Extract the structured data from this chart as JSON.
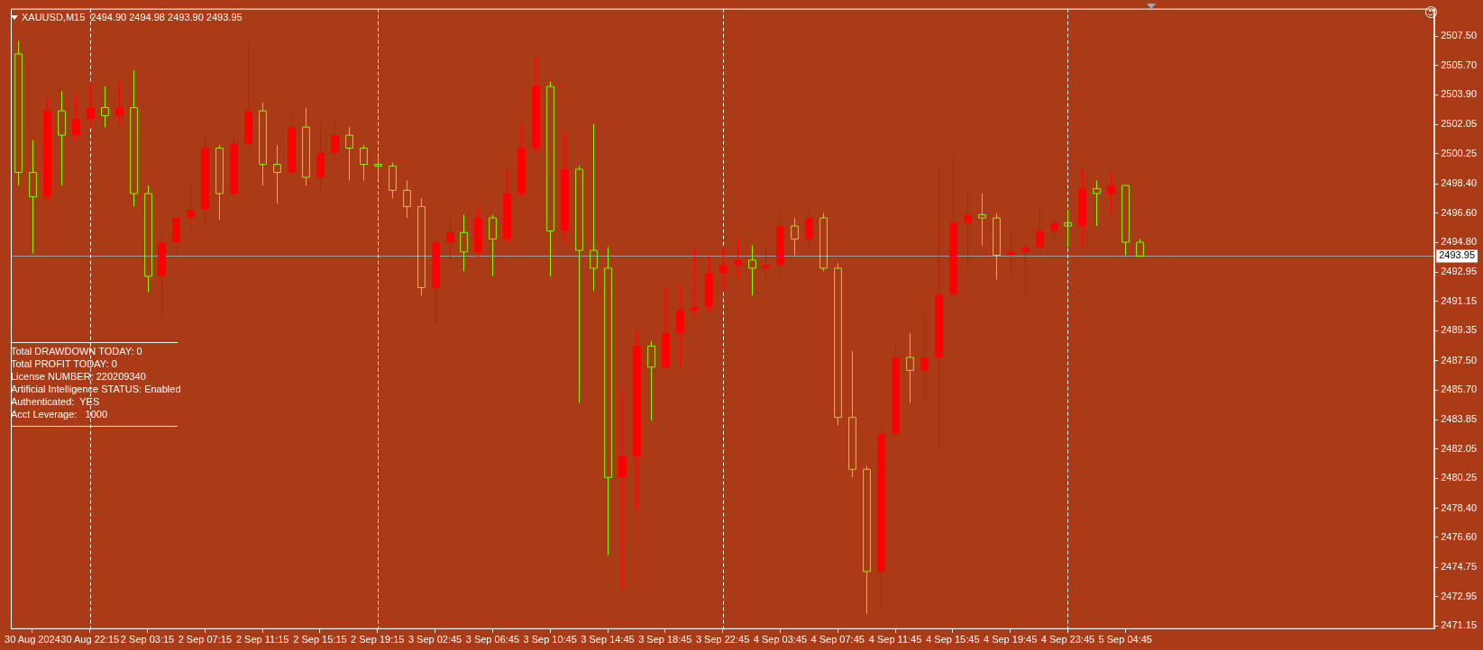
{
  "chart_data": {
    "type": "candlestick",
    "title": "XAUUSD,M15  2494.90 2494.98 2493.90 2493.95",
    "annotations": [
      "Total DRAWDOWN TODAY: 0",
      "Total PROFIT TODAY: 0",
      "License NUMBER: 220209340",
      "Artificial Intelligence STATUS: Enabled",
      "Authenticated:  YES",
      "Acct Leverage:   1000"
    ],
    "categories": [
      null,
      "30 Aug 2024",
      null,
      null,
      null,
      "30 Aug 22:15",
      null,
      null,
      null,
      "2 Sep 03:15",
      null,
      null,
      null,
      "2 Sep 07:15",
      null,
      null,
      null,
      "2 Sep 11:15",
      null,
      null,
      null,
      "2 Sep 15:15",
      null,
      null,
      null,
      "2 Sep 19:15",
      null,
      null,
      null,
      "3 Sep 02:45",
      null,
      null,
      null,
      "3 Sep 06:45",
      null,
      null,
      null,
      "3 Sep 10:45",
      null,
      null,
      null,
      "3 Sep 14:45",
      null,
      null,
      null,
      "3 Sep 18:45",
      null,
      null,
      null,
      "3 Sep 22:45",
      null,
      null,
      null,
      "4 Sep 03:45",
      null,
      null,
      null,
      "4 Sep 07:45",
      null,
      null,
      null,
      "4 Sep 11:45",
      null,
      null,
      null,
      "4 Sep 15:45",
      null,
      null,
      null,
      "4 Sep 19:45",
      null,
      null,
      null,
      "4 Sep 23:45",
      null,
      null,
      null,
      "5 Sep 04:45",
      null,
      null,
      null,
      null,
      null,
      null,
      null,
      null,
      null,
      null,
      null,
      null,
      null,
      null,
      null,
      null,
      null,
      null,
      null,
      null,
      null
    ],
    "ohlc": [
      [
        2506.4,
        2507.2,
        2498.3,
        2499.1
      ],
      [
        2499.1,
        2501.1,
        2494.1,
        2497.6
      ],
      [
        2497.6,
        2503.6,
        2497.3,
        2502.9
      ],
      [
        2502.9,
        2504.1,
        2498.3,
        2501.4
      ],
      [
        2501.4,
        2503.9,
        2501.1,
        2502.4
      ],
      [
        2502.4,
        2504.7,
        2501.9,
        2503.1
      ],
      [
        2503.1,
        2504.4,
        2501.9,
        2502.6
      ],
      [
        2502.6,
        2504.7,
        2502.1,
        2503.1
      ],
      [
        2503.1,
        2505.4,
        2497.0,
        2497.8
      ],
      [
        2497.8,
        2498.3,
        2491.7,
        2492.7
      ],
      [
        2492.7,
        2495.3,
        2490.2,
        2494.8
      ],
      [
        2494.8,
        2496.5,
        2494.0,
        2496.3
      ],
      [
        2496.3,
        2498.6,
        2495.6,
        2496.8
      ],
      [
        2496.8,
        2501.4,
        2495.8,
        2500.6
      ],
      [
        2500.6,
        2500.8,
        2496.2,
        2497.8
      ],
      [
        2497.8,
        2501.6,
        2497.5,
        2500.9
      ],
      [
        2500.9,
        2507.2,
        2500.6,
        2502.9
      ],
      [
        2502.9,
        2503.4,
        2498.3,
        2499.6
      ],
      [
        2499.6,
        2500.8,
        2497.2,
        2499.1
      ],
      [
        2499.1,
        2502.9,
        2498.8,
        2501.9
      ],
      [
        2501.9,
        2503.1,
        2498.3,
        2498.8
      ],
      [
        2498.8,
        2502.1,
        2497.8,
        2500.3
      ],
      [
        2500.3,
        2502.5,
        2499.8,
        2501.4
      ],
      [
        2501.4,
        2501.9,
        2498.6,
        2500.6
      ],
      [
        2500.6,
        2500.8,
        2498.6,
        2499.6
      ],
      [
        2499.6,
        2500.1,
        2498.7,
        2499.5
      ],
      [
        2499.5,
        2499.7,
        2497.5,
        2498.0
      ],
      [
        2498.0,
        2498.6,
        2496.3,
        2497.0
      ],
      [
        2497.0,
        2497.5,
        2491.5,
        2492.0
      ],
      [
        2492.0,
        2495.0,
        2489.7,
        2494.8
      ],
      [
        2494.8,
        2496.4,
        2493.7,
        2495.4
      ],
      [
        2495.4,
        2496.5,
        2493.0,
        2494.2
      ],
      [
        2494.2,
        2497.0,
        2493.9,
        2496.3
      ],
      [
        2496.3,
        2496.5,
        2492.7,
        2495.0
      ],
      [
        2495.0,
        2499.3,
        2494.8,
        2497.8
      ],
      [
        2497.8,
        2502.1,
        2497.5,
        2500.6
      ],
      [
        2500.6,
        2506.2,
        2500.3,
        2504.4
      ],
      [
        2504.4,
        2504.7,
        2492.7,
        2495.5
      ],
      [
        2495.5,
        2501.6,
        2494.8,
        2499.3
      ],
      [
        2499.3,
        2499.5,
        2484.9,
        2494.3
      ],
      [
        2494.3,
        2502.1,
        2491.8,
        2493.2
      ],
      [
        2493.2,
        2494.5,
        2475.5,
        2480.3
      ],
      [
        2480.3,
        2485.6,
        2473.4,
        2481.6
      ],
      [
        2481.6,
        2489.4,
        2478.3,
        2488.4
      ],
      [
        2488.4,
        2488.7,
        2483.8,
        2487.1
      ],
      [
        2487.1,
        2492.0,
        2487.0,
        2489.2
      ],
      [
        2489.2,
        2492.2,
        2487.1,
        2490.6
      ],
      [
        2490.6,
        2494.4,
        2490.2,
        2490.8
      ],
      [
        2490.8,
        2494.0,
        2490.5,
        2492.9
      ],
      [
        2492.9,
        2494.5,
        2491.8,
        2493.4
      ],
      [
        2493.4,
        2495.0,
        2492.5,
        2493.7
      ],
      [
        2493.7,
        2494.6,
        2491.5,
        2493.2
      ],
      [
        2493.2,
        2494.5,
        2492.5,
        2493.4
      ],
      [
        2493.4,
        2496.8,
        2492.7,
        2495.8
      ],
      [
        2495.8,
        2496.3,
        2494.0,
        2495.0
      ],
      [
        2495.0,
        2496.8,
        2494.4,
        2496.3
      ],
      [
        2496.3,
        2496.6,
        2493.0,
        2493.2
      ],
      [
        2493.2,
        2493.5,
        2483.5,
        2484.0
      ],
      [
        2484.0,
        2488.1,
        2480.3,
        2480.8
      ],
      [
        2480.8,
        2481.0,
        2471.9,
        2474.5
      ],
      [
        2474.5,
        2483.4,
        2472.2,
        2483.0
      ],
      [
        2483.0,
        2488.4,
        2482.8,
        2487.7
      ],
      [
        2487.7,
        2489.2,
        2484.9,
        2486.9
      ],
      [
        2486.9,
        2490.6,
        2485.1,
        2487.7
      ],
      [
        2487.7,
        2499.3,
        2482.1,
        2491.6
      ],
      [
        2491.6,
        2500.2,
        2491.4,
        2496.0
      ],
      [
        2496.0,
        2498.1,
        2493.2,
        2496.5
      ],
      [
        2496.5,
        2497.8,
        2494.6,
        2496.3
      ],
      [
        2496.3,
        2496.6,
        2492.5,
        2494.0
      ],
      [
        2494.0,
        2495.5,
        2492.7,
        2494.2
      ],
      [
        2494.2,
        2494.6,
        2491.5,
        2494.5
      ],
      [
        2494.5,
        2497.0,
        2494.2,
        2495.5
      ],
      [
        2495.5,
        2496.3,
        2495.0,
        2496.0
      ],
      [
        2496.0,
        2496.8,
        2494.5,
        2495.8
      ],
      [
        2495.8,
        2499.3,
        2494.5,
        2498.1
      ],
      [
        2498.1,
        2498.6,
        2495.8,
        2497.8
      ],
      [
        2497.8,
        2499.1,
        2496.5,
        2498.3
      ],
      [
        2498.3,
        2498.3,
        2494.0,
        2494.8
      ],
      [
        2494.8,
        2495.0,
        2493.9,
        2493.95
      ],
      null,
      null,
      null,
      null,
      null,
      null,
      null,
      null,
      null,
      null,
      null,
      null,
      null,
      null,
      null,
      null,
      null,
      null,
      null,
      null
    ],
    "colors": [
      "#7cfc00",
      "#7cfc00",
      "#ff0000",
      "#7cfc00",
      "#ff0000",
      "#ff0000",
      "#7cfc00",
      "#ff0000",
      "#7cfc00",
      "#7cfc00",
      "#ff0000",
      "#ff0000",
      "#ff0000",
      "#ff0000",
      "#7cfc00",
      "#ff0000",
      "#ff0000",
      "#7cfc00",
      "#7cfc00",
      "#ff0000",
      "#7cfc00",
      "#ff0000",
      "#ff0000",
      "#7cfc00",
      "#7cfc00",
      "#7cfc00",
      "#7cfc00",
      "#7cfc00",
      "#7cfc00",
      "#ff0000",
      "#ff0000",
      "#7cfc00",
      "#ff0000",
      "#7cfc00",
      "#ff0000",
      "#ff0000",
      "#ff0000",
      "#7cfc00",
      "#ff0000",
      "#7cfc00",
      "#7cfc00",
      "#7cfc00",
      "#ff0000",
      "#ff0000",
      "#7cfc00",
      "#ff0000",
      "#ff0000",
      "#ff0000",
      "#ff0000",
      "#ff0000",
      "#ff0000",
      "#7cfc00",
      "#ff0000",
      "#ff0000",
      "#7cfc00",
      "#ff0000",
      "#7cfc00",
      "#7cfc00",
      "#7cfc00",
      "#7cfc00",
      "#ff0000",
      "#ff0000",
      "#7cfc00",
      "#ff0000",
      "#ff0000",
      "#ff0000",
      "#ff0000",
      "#7cfc00",
      "#7cfc00",
      "#ff0000",
      "#ff0000",
      "#ff0000",
      "#ff0000",
      "#7cfc00",
      "#ff0000",
      "#7cfc00",
      "#ff0000",
      "#7cfc00",
      "#7cfc00",
      null,
      null,
      null,
      null,
      null,
      null,
      null,
      null,
      null,
      null,
      null,
      null,
      null,
      null,
      null,
      null,
      null,
      null,
      null,
      null
    ],
    "ylim": [
      2470.95,
      2509.2
    ],
    "yticks": [
      {
        "value": 2507.5,
        "label": "2507.50"
      },
      {
        "value": 2505.7,
        "label": "2505.70"
      },
      {
        "value": 2503.9,
        "label": "2503.90"
      },
      {
        "value": 2502.05,
        "label": "2502.05"
      },
      {
        "value": 2500.25,
        "label": "2500.25"
      },
      {
        "value": 2498.4,
        "label": "2498.40"
      },
      {
        "value": 2496.6,
        "label": "2496.60"
      },
      {
        "value": 2494.8,
        "label": "2494.80"
      },
      {
        "value": 2492.95,
        "label": "2492.95"
      },
      {
        "value": 2491.15,
        "label": "2491.15"
      },
      {
        "value": 2489.35,
        "label": "2489.35"
      },
      {
        "value": 2487.5,
        "label": "2487.50"
      },
      {
        "value": 2485.7,
        "label": "2485.70"
      },
      {
        "value": 2483.85,
        "label": "2483.85"
      },
      {
        "value": 2482.05,
        "label": "2482.05"
      },
      {
        "value": 2480.25,
        "label": "2480.25"
      },
      {
        "value": 2478.4,
        "label": "2478.40"
      },
      {
        "value": 2476.6,
        "label": "2476.60"
      },
      {
        "value": 2474.75,
        "label": "2474.75"
      },
      {
        "value": 2472.95,
        "label": "2472.95"
      },
      {
        "value": 2471.15,
        "label": "2471.15"
      }
    ],
    "ref_lines": [
      {
        "axis": "y",
        "value": 2493.95,
        "label": "2493.95",
        "color": "#a0a0a0",
        "line_style": "solid"
      },
      {
        "axis": "x",
        "value": "30 Aug 22:15",
        "color": "#ffffff",
        "line_style": "dashed"
      },
      {
        "axis": "x",
        "value": "2 Sep 19:15",
        "color": "#ffffff",
        "line_style": "dashed"
      },
      {
        "axis": "x",
        "value": "3 Sep 22:45",
        "color": "#ffffff",
        "line_style": "dashed"
      },
      {
        "axis": "x",
        "value": "4 Sep 23:45",
        "color": "#ffffff",
        "line_style": "dashed"
      }
    ],
    "grid": false,
    "legend": false
  }
}
